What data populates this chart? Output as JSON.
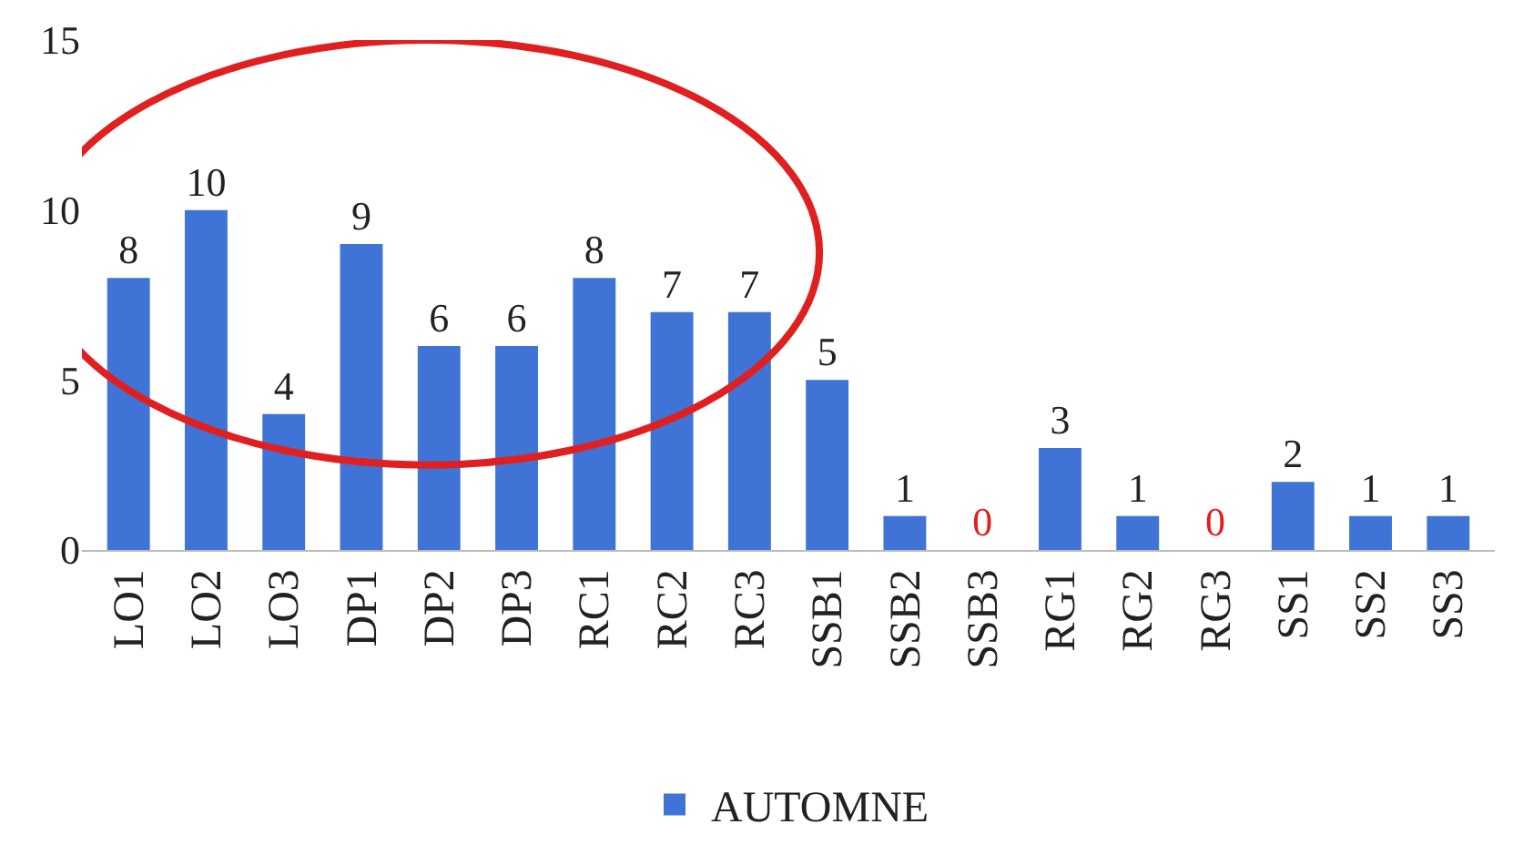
{
  "chart_data": {
    "type": "bar",
    "categories": [
      "LO1",
      "LO2",
      "LO3",
      "DP1",
      "DP2",
      "DP3",
      "RC1",
      "RC2",
      "RC3",
      "SSB1",
      "SSB2",
      "SSB3",
      "RG1",
      "RG2",
      "RG3",
      "SS1",
      "SS2",
      "SS3"
    ],
    "series": [
      {
        "name": "AUTOMNE",
        "color": "#3f74d6",
        "values": [
          8,
          10,
          4,
          9,
          6,
          6,
          8,
          7,
          7,
          5,
          1,
          0,
          3,
          1,
          0,
          2,
          1,
          1
        ]
      }
    ],
    "ylim": [
      0,
      15
    ],
    "yticks": [
      0,
      5,
      10,
      15
    ],
    "data_labels": true,
    "legend": "bottom"
  }
}
